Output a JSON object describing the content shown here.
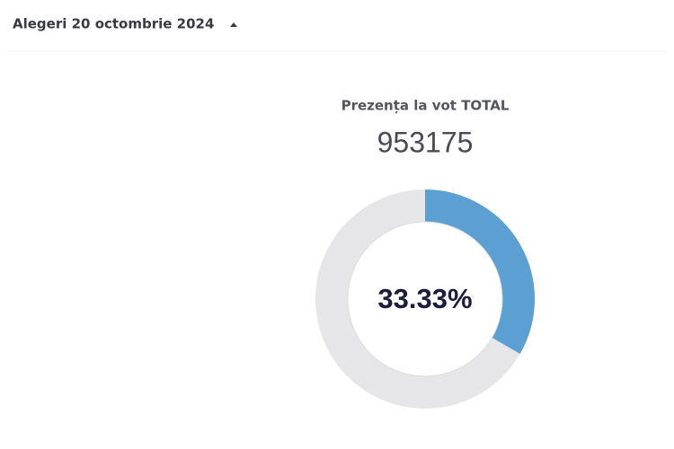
{
  "header": {
    "title": "Alegeri 20 octombrie 2024"
  },
  "gauge": {
    "title": "Prezența la vot TOTAL",
    "total": 953175,
    "value": 33.33,
    "value_label": "33.33%",
    "color": "#5b9fd3",
    "track_color": "#e6e6e8"
  }
}
